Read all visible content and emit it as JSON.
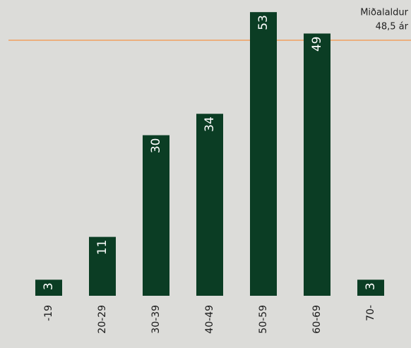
{
  "chart_data": {
    "type": "bar",
    "categories": [
      "-19",
      "20-29",
      "30-39",
      "40-49",
      "50-59",
      "60-69",
      "70-"
    ],
    "values": [
      3,
      11,
      30,
      34,
      53,
      49,
      3
    ],
    "color": "#0b3d24",
    "ylim": [
      0,
      55
    ],
    "annotations": [
      "Miðalaldur",
      "48,5 ár"
    ],
    "reference_color": "#f0a060"
  }
}
